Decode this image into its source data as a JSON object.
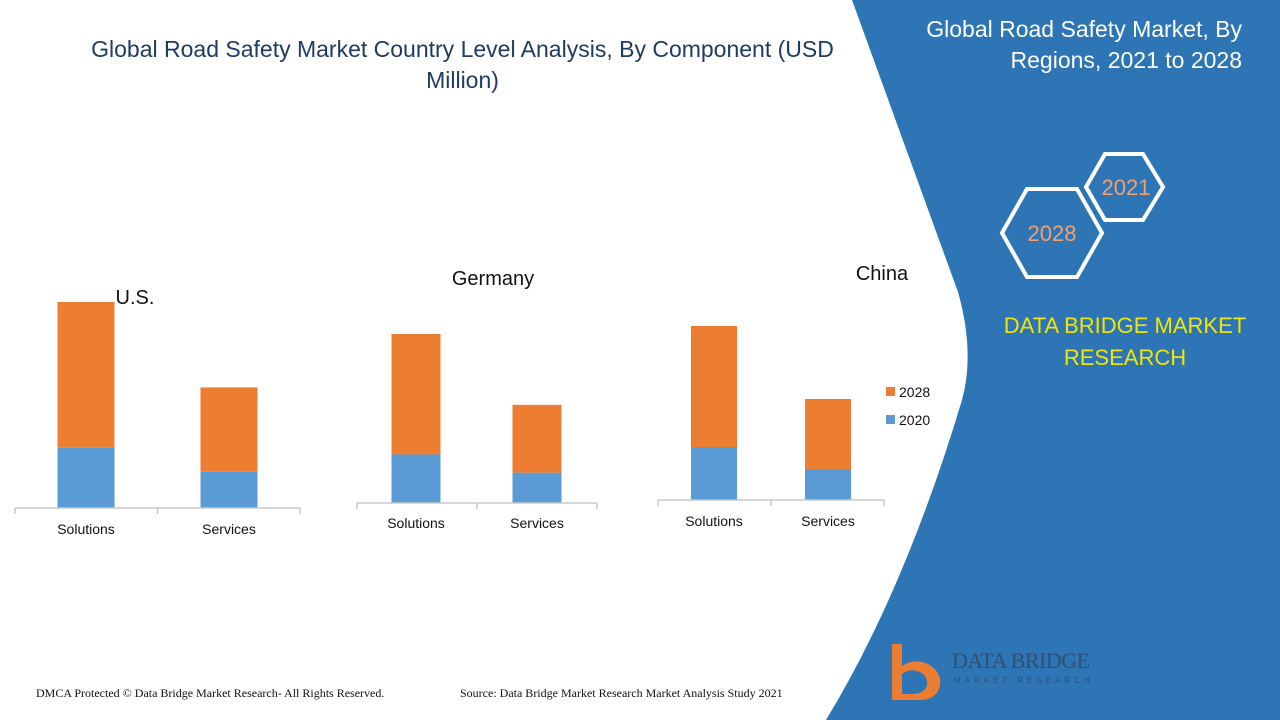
{
  "title": "Global Road Safety Market Country Level Analysis, By Component (USD Million)",
  "panel": {
    "title": "Global Road Safety Market, By Regions, 2021 to 2028",
    "hex_years": [
      "2021",
      "2028"
    ],
    "brand": "DATA BRIDGE MARKET RESEARCH"
  },
  "colors": {
    "series_2028": "#ed7d31",
    "series_2020": "#5b9bd5",
    "panel_blue": "#2e75b6",
    "brand_yellow": "#f2e600",
    "title_navy": "#1f3b63"
  },
  "chart_data": [
    {
      "type": "bar",
      "stacked": true,
      "title": "U.S.",
      "categories": [
        "Solutions",
        "Services"
      ],
      "series": [
        {
          "name": "2020",
          "values": [
            60,
            36
          ]
        },
        {
          "name": "2028",
          "values": [
            145,
            84
          ]
        }
      ],
      "ylim": [
        0,
        205
      ]
    },
    {
      "type": "bar",
      "stacked": true,
      "title": "Germany",
      "categories": [
        "Solutions",
        "Services"
      ],
      "series": [
        {
          "name": "2020",
          "values": [
            48,
            30
          ]
        },
        {
          "name": "2028",
          "values": [
            119,
            67
          ]
        }
      ],
      "ylim": [
        0,
        167
      ]
    },
    {
      "type": "bar",
      "stacked": true,
      "title": "China",
      "categories": [
        "Solutions",
        "Services"
      ],
      "series": [
        {
          "name": "2020",
          "values": [
            53,
            31
          ]
        },
        {
          "name": "2028",
          "values": [
            121,
            70
          ]
        }
      ],
      "ylim": [
        0,
        174
      ],
      "legend": "right"
    }
  ],
  "legend": [
    {
      "label": "2028",
      "color": "#ed7d31"
    },
    {
      "label": "2020",
      "color": "#5b9bd5"
    }
  ],
  "footer": {
    "left": "DMCA Protected © Data Bridge Market Research- All Rights Reserved.",
    "right": "Source: Data Bridge Market Research Market Analysis Study 2021"
  },
  "logo": {
    "name": "DATA BRIDGE",
    "sub": "MARKET RESEARCH"
  }
}
